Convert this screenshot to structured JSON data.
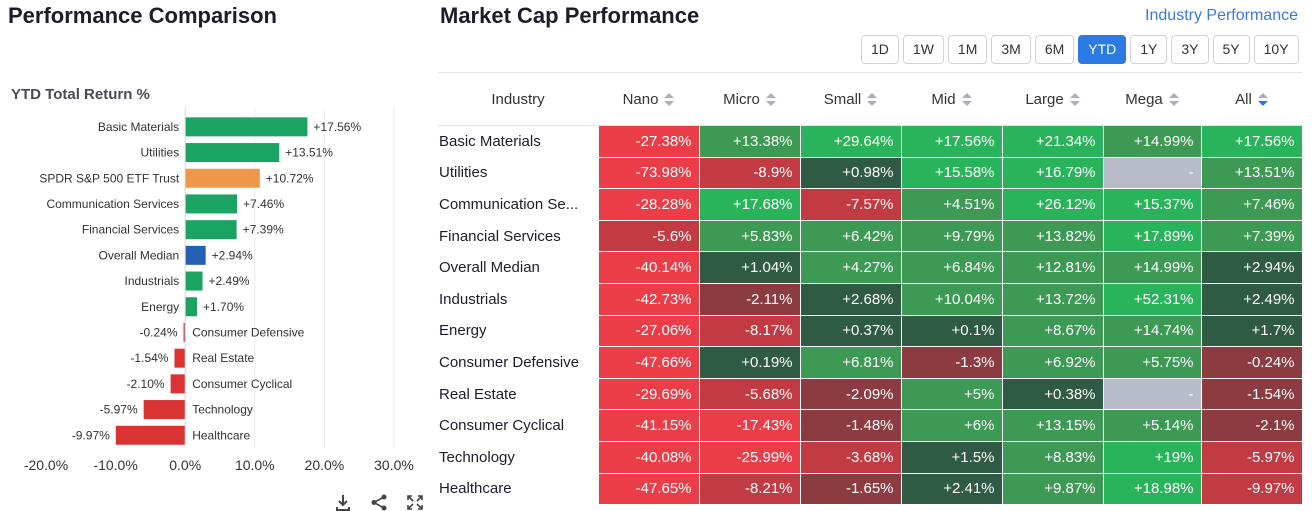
{
  "left": {
    "title": "Performance Comparison",
    "chart_label": "YTD Total Return %"
  },
  "chart_data": {
    "type": "bar",
    "orientation": "horizontal",
    "title": "YTD Total Return %",
    "categories": [
      "Basic Materials",
      "Utilities",
      "SPDR S&P 500 ETF Trust",
      "Communication Services",
      "Financial Services",
      "Overall Median",
      "Industrials",
      "Energy",
      "Consumer Defensive",
      "Real Estate",
      "Consumer Cyclical",
      "Technology",
      "Healthcare"
    ],
    "values": [
      17.56,
      13.51,
      10.72,
      7.46,
      7.39,
      2.94,
      2.49,
      1.7,
      -0.24,
      -1.54,
      -2.1,
      -5.97,
      -9.97
    ],
    "value_labels": [
      "+17.56%",
      "+13.51%",
      "+10.72%",
      "+7.46%",
      "+7.39%",
      "+2.94%",
      "+2.49%",
      "+1.70%",
      "-0.24%",
      "-1.54%",
      "-2.10%",
      "-5.97%",
      "-9.97%"
    ],
    "xlim": [
      -20,
      30
    ],
    "x_ticks": [
      -20,
      -10,
      0,
      10,
      20,
      30
    ],
    "x_tick_labels": [
      "-20.0%",
      "-10.0%",
      "0.0%",
      "10.0%",
      "20.0%",
      "30.0%"
    ],
    "colors": {
      "positive": "#1aa363",
      "negative": "#d93333",
      "benchmark": "#f0984a",
      "median": "#2460b4"
    },
    "benchmark_category": "SPDR S&P 500 ETF Trust",
    "median_category": "Overall Median",
    "grid": true
  },
  "chart_tools": [
    "download-icon",
    "share-icon",
    "expand-icon"
  ],
  "right": {
    "title": "Market Cap Performance",
    "link": "Industry Performance",
    "periods": [
      "1D",
      "1W",
      "1M",
      "3M",
      "6M",
      "YTD",
      "1Y",
      "3Y",
      "5Y",
      "10Y"
    ],
    "active_period": "YTD",
    "columns": [
      "Industry",
      "Nano",
      "Micro",
      "Small",
      "Mid",
      "Large",
      "Mega",
      "All"
    ],
    "sorted_column": "All",
    "rows": [
      {
        "industry": "Basic Materials",
        "values": [
          "-27.38%",
          "+13.38%",
          "+29.64%",
          "+17.56%",
          "+21.34%",
          "+14.99%",
          "+17.56%"
        ]
      },
      {
        "industry": "Utilities",
        "values": [
          "-73.98%",
          "-8.9%",
          "+0.98%",
          "+15.58%",
          "+16.79%",
          "-",
          "+13.51%"
        ]
      },
      {
        "industry": "Communication Se...",
        "values": [
          "-28.28%",
          "+17.68%",
          "-7.57%",
          "+4.51%",
          "+26.12%",
          "+15.37%",
          "+7.46%"
        ]
      },
      {
        "industry": "Financial Services",
        "values": [
          "-5.6%",
          "+5.83%",
          "+6.42%",
          "+9.79%",
          "+13.82%",
          "+17.89%",
          "+7.39%"
        ]
      },
      {
        "industry": "Overall Median",
        "values": [
          "-40.14%",
          "+1.04%",
          "+4.27%",
          "+6.84%",
          "+12.81%",
          "+14.99%",
          "+2.94%"
        ]
      },
      {
        "industry": "Industrials",
        "values": [
          "-42.73%",
          "-2.11%",
          "+2.68%",
          "+10.04%",
          "+13.72%",
          "+52.31%",
          "+2.49%"
        ]
      },
      {
        "industry": "Energy",
        "values": [
          "-27.06%",
          "-8.17%",
          "+0.37%",
          "+0.1%",
          "+8.67%",
          "+14.74%",
          "+1.7%"
        ]
      },
      {
        "industry": "Consumer Defensive",
        "values": [
          "-47.66%",
          "+0.19%",
          "+6.81%",
          "-1.3%",
          "+6.92%",
          "+5.75%",
          "-0.24%"
        ]
      },
      {
        "industry": "Real Estate",
        "values": [
          "-29.69%",
          "-5.68%",
          "-2.09%",
          "+5%",
          "+0.38%",
          "-",
          "-1.54%"
        ]
      },
      {
        "industry": "Consumer Cyclical",
        "values": [
          "-41.15%",
          "-17.43%",
          "-1.48%",
          "+6%",
          "+13.15%",
          "+5.14%",
          "-2.1%"
        ]
      },
      {
        "industry": "Technology",
        "values": [
          "-40.08%",
          "-25.99%",
          "-3.68%",
          "+1.5%",
          "+8.83%",
          "+19%",
          "-5.97%"
        ]
      },
      {
        "industry": "Healthcare",
        "values": [
          "-47.65%",
          "-8.21%",
          "-1.65%",
          "+2.41%",
          "+9.87%",
          "+18.98%",
          "-9.97%"
        ]
      }
    ],
    "colors": {
      "accent": "#2c7be5",
      "strong_pos": "#29b35a",
      "mid_pos": "#3c9a54",
      "weak_pos": "#2f5a43",
      "weak_neg": "#8c3b41",
      "mid_neg": "#c23a42",
      "strong_neg": "#ea3d47",
      "na": "#b8bcc8"
    }
  }
}
